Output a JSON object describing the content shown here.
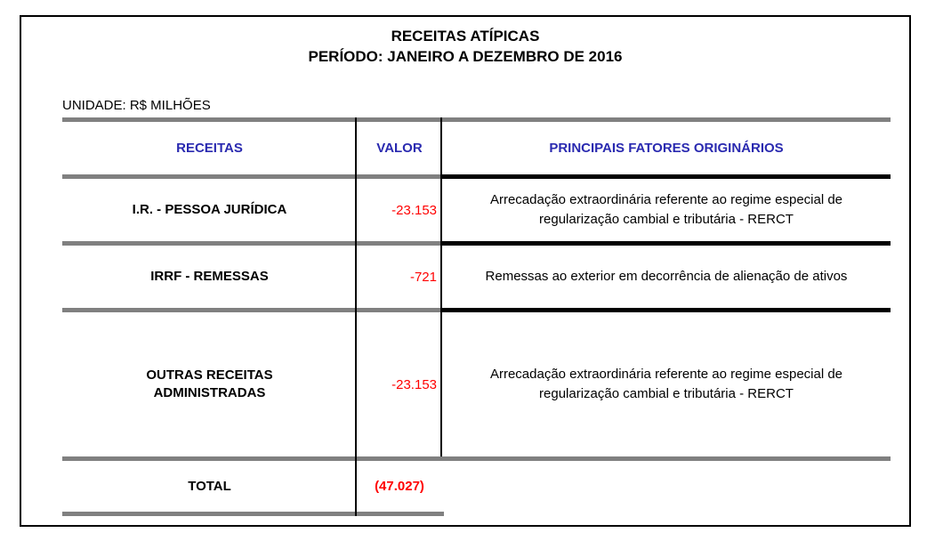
{
  "title": {
    "line1": "RECEITAS ATÍPICAS",
    "line2": "PERÍODO: JANEIRO A DEZEMBRO DE 2016"
  },
  "unit_label": "UNIDADE: R$ MILHÕES",
  "table": {
    "headers": {
      "receitas": "RECEITAS",
      "valor": "VALOR",
      "fatores": "PRINCIPAIS FATORES ORIGINÁRIOS"
    },
    "rows": [
      {
        "receita": "I.R. - PESSOA JURÍDICA",
        "valor": "-23.153",
        "fator": "Arrecadação extraordinária referente ao regime especial de regularização cambial e tributária - RERCT"
      },
      {
        "receita": "IRRF - REMESSAS",
        "valor": "-721",
        "fator": "Remessas ao exterior em decorrência de alienação de ativos"
      },
      {
        "receita": "OUTRAS RECEITAS ADMINISTRADAS",
        "valor": "-23.153",
        "fator": "Arrecadação extraordinária referente ao regime especial de regularização cambial e tributária - RERCT"
      }
    ],
    "total": {
      "label": "TOTAL",
      "valor": "(47.027)"
    }
  },
  "colors": {
    "header_text_blue": "#2a2ab0",
    "value_red": "#ff0000",
    "line_gray": "#808080",
    "line_black": "#000000"
  }
}
